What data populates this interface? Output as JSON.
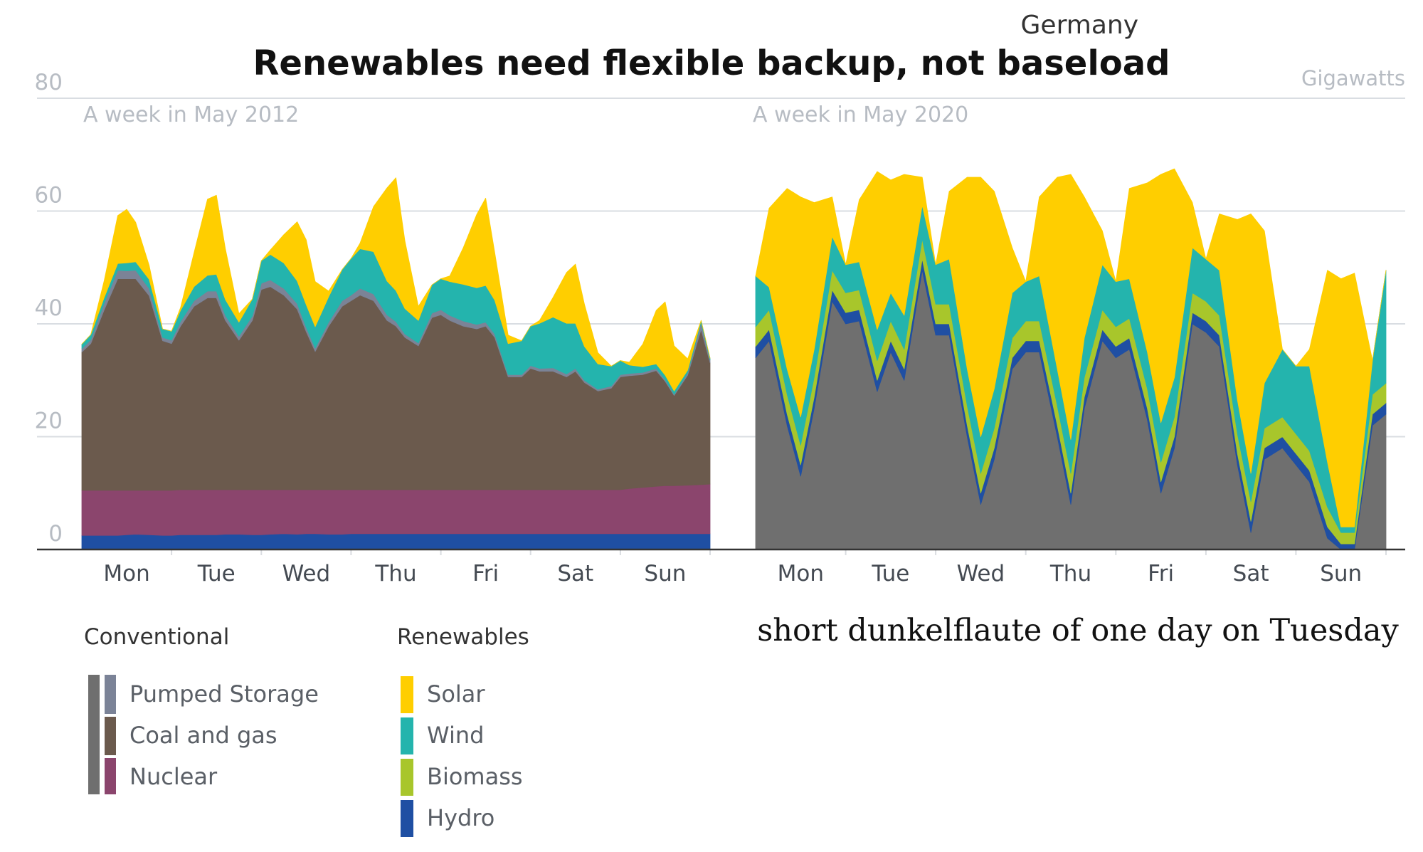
{
  "title": "Renewables need flexible backup, not baseload",
  "country": "Germany",
  "unit_label": "Gigawatts",
  "annotation": "short dunkelflaute of one day on Tuesday",
  "legend": {
    "conventional_title": "Conventional",
    "renewables_title": "Renewables",
    "conventional_items": [
      {
        "key": "pumped",
        "label": "Pumped Storage"
      },
      {
        "key": "coal",
        "label": "Coal and gas"
      },
      {
        "key": "nuclear",
        "label": "Nuclear"
      }
    ],
    "renewable_items": [
      {
        "key": "solar",
        "label": "Solar"
      },
      {
        "key": "wind",
        "label": "Wind"
      },
      {
        "key": "biomass",
        "label": "Biomass"
      },
      {
        "key": "hydro",
        "label": "Hydro"
      }
    ]
  },
  "colors": {
    "hydro": "#1f4fa3",
    "nuclear": "#8b456d",
    "coal": "#6b5a4d",
    "pumped": "#7b8397",
    "wind": "#24b4ad",
    "solar": "#ffce00",
    "biomass": "#a8c62b",
    "conventional": "#6f6f6f",
    "gridline": "#d9dde2",
    "axis": "#333333"
  },
  "chart_data": [
    {
      "type": "area",
      "title": "A week in May 2012",
      "ylabel": "Gigawatts",
      "ylim": [
        0,
        80
      ],
      "yticks": [
        0,
        20,
        40,
        60,
        80
      ],
      "categories": [
        "Mon",
        "Tue",
        "Wed",
        "Thu",
        "Fri",
        "Sat",
        "Sun"
      ],
      "x": [
        0,
        0.1,
        0.25,
        0.4,
        0.5,
        0.6,
        0.75,
        0.9,
        1.0,
        1.1,
        1.25,
        1.4,
        1.5,
        1.6,
        1.75,
        1.9,
        2.0,
        2.1,
        2.25,
        2.4,
        2.5,
        2.6,
        2.75,
        2.9,
        3.0,
        3.1,
        3.25,
        3.4,
        3.5,
        3.6,
        3.75,
        3.9,
        4.0,
        4.1,
        4.25,
        4.4,
        4.5,
        4.6,
        4.75,
        4.9,
        5.0,
        5.1,
        5.25,
        5.4,
        5.5,
        5.6,
        5.75,
        5.9,
        6.0,
        6.1,
        6.25,
        6.4,
        6.5,
        6.6,
        6.75,
        6.9,
        7.0
      ],
      "series": [
        {
          "name": "Hydro",
          "values": [
            2.5,
            2.5,
            2.5,
            2.5,
            2.6,
            2.7,
            2.6,
            2.5,
            2.5,
            2.6,
            2.6,
            2.6,
            2.6,
            2.7,
            2.7,
            2.6,
            2.6,
            2.7,
            2.8,
            2.7,
            2.8,
            2.8,
            2.7,
            2.7,
            2.8,
            2.8,
            2.8,
            2.8,
            2.8,
            2.8,
            2.8,
            2.8,
            2.8,
            2.8,
            2.8,
            2.8,
            2.8,
            2.8,
            2.8,
            2.8,
            2.8,
            2.8,
            2.8,
            2.8,
            2.8,
            2.8,
            2.8,
            2.8,
            2.8,
            2.8,
            2.8,
            2.8,
            2.8,
            2.8,
            2.8,
            2.8,
            2.8
          ]
        },
        {
          "name": "Nuclear",
          "values": [
            8.0,
            8.0,
            8.0,
            8.0,
            7.9,
            7.8,
            7.9,
            8.0,
            8.0,
            8.0,
            8.0,
            8.0,
            8.0,
            7.9,
            7.9,
            8.0,
            8.0,
            7.9,
            7.8,
            7.9,
            7.8,
            7.8,
            7.9,
            7.9,
            7.8,
            7.8,
            7.8,
            7.8,
            7.8,
            7.8,
            7.8,
            7.8,
            7.8,
            7.8,
            7.8,
            7.8,
            7.8,
            7.8,
            7.8,
            7.8,
            7.8,
            7.8,
            7.8,
            7.8,
            7.8,
            7.8,
            7.8,
            7.8,
            7.8,
            8.0,
            8.2,
            8.4,
            8.5,
            8.5,
            8.6,
            8.7,
            8.8
          ]
        },
        {
          "name": "Coal and gas",
          "values": [
            24.5,
            26.0,
            32.0,
            37.5,
            37.5,
            37.5,
            34.5,
            26.5,
            26.0,
            29.0,
            32.5,
            34.0,
            34.0,
            30.0,
            26.5,
            30.0,
            35.5,
            36.0,
            34.5,
            32.0,
            28.0,
            24.5,
            29.0,
            32.5,
            33.5,
            34.5,
            33.5,
            30.0,
            29.0,
            27.0,
            25.5,
            30.5,
            31.0,
            30.0,
            29.0,
            28.5,
            29.0,
            27.0,
            20.0,
            20.0,
            21.5,
            21.0,
            21.0,
            20.0,
            21.0,
            19.0,
            17.5,
            18.0,
            20.0,
            20.0,
            20.0,
            20.5,
            18.5,
            16.0,
            19.5,
            27.5,
            21.5
          ]
        },
        {
          "name": "Pumped Storage",
          "values": [
            0.6,
            0.7,
            1.2,
            1.5,
            1.4,
            1.5,
            1.3,
            0.6,
            0.6,
            0.8,
            1.0,
            1.2,
            1.2,
            0.9,
            0.7,
            0.8,
            1.1,
            1.2,
            1.2,
            1.0,
            0.8,
            0.6,
            0.7,
            1.0,
            1.0,
            1.2,
            1.2,
            1.0,
            0.8,
            0.6,
            0.5,
            0.8,
            0.9,
            0.9,
            0.9,
            0.8,
            0.7,
            0.6,
            0.4,
            0.4,
            0.5,
            0.5,
            0.6,
            0.5,
            0.5,
            0.4,
            0.3,
            0.4,
            0.4,
            0.4,
            0.4,
            0.4,
            0.3,
            0.2,
            0.4,
            1.2,
            0.5
          ]
        },
        {
          "name": "Wind",
          "values": [
            0.8,
            0.9,
            1.0,
            1.2,
            1.4,
            1.5,
            1.6,
            1.5,
            1.6,
            2.0,
            2.5,
            2.8,
            3.0,
            2.8,
            2.5,
            3.0,
            4.0,
            4.5,
            4.5,
            4.0,
            4.0,
            3.8,
            4.5,
            5.5,
            6.5,
            7.0,
            7.5,
            6.0,
            5.5,
            4.5,
            4.0,
            5.0,
            5.5,
            6.0,
            6.5,
            6.5,
            6.5,
            6.0,
            5.5,
            6.0,
            7.0,
            8.0,
            9.0,
            9.0,
            8.0,
            6.0,
            4.5,
            3.5,
            2.5,
            1.5,
            1.0,
            0.8,
            0.8,
            0.6,
            0.5,
            0.4,
            0.3
          ]
        },
        {
          "name": "Solar",
          "values": [
            0.0,
            0.0,
            3.0,
            8.5,
            9.5,
            7.0,
            2.5,
            0.0,
            0.0,
            0.5,
            6.0,
            13.5,
            14.0,
            9.0,
            1.5,
            0.0,
            0.0,
            0.8,
            5.0,
            10.5,
            11.5,
            8.0,
            1.0,
            0.0,
            0.0,
            1.0,
            8.0,
            16.5,
            20.0,
            12.0,
            2.5,
            0.0,
            0.0,
            1.0,
            6.5,
            13.0,
            15.5,
            8.5,
            1.5,
            0.0,
            0.0,
            0.5,
            3.5,
            9.0,
            10.5,
            7.5,
            2.0,
            0.0,
            0.0,
            0.5,
            4.0,
            9.5,
            13.0,
            8.0,
            2.0,
            0.0,
            0.0
          ]
        }
      ]
    },
    {
      "type": "area",
      "title": "A week in May 2020",
      "ylabel": "Gigawatts",
      "ylim": [
        0,
        80
      ],
      "yticks": [
        0,
        20,
        40,
        60,
        80
      ],
      "categories": [
        "Mon",
        "Tue",
        "Wed",
        "Thu",
        "Fri",
        "Sat",
        "Sun"
      ],
      "x": [
        0,
        0.15,
        0.35,
        0.5,
        0.65,
        0.85,
        1.0,
        1.15,
        1.35,
        1.5,
        1.65,
        1.85,
        2.0,
        2.15,
        2.35,
        2.5,
        2.65,
        2.85,
        3.0,
        3.15,
        3.35,
        3.5,
        3.65,
        3.85,
        4.0,
        4.15,
        4.35,
        4.5,
        4.65,
        4.85,
        5.0,
        5.15,
        5.35,
        5.5,
        5.65,
        5.85,
        6.0,
        6.15,
        6.35,
        6.5,
        6.65,
        6.85,
        7.0
      ],
      "series": [
        {
          "name": "Conventional",
          "values": [
            34.0,
            37.0,
            22.0,
            13.0,
            25.0,
            44.0,
            40.0,
            40.5,
            28.0,
            35.0,
            30.0,
            49.5,
            38.0,
            38.0,
            20.0,
            8.0,
            16.0,
            32.0,
            35.0,
            35.0,
            20.0,
            8.0,
            25.0,
            37.0,
            34.0,
            35.5,
            23.0,
            10.0,
            18.0,
            40.0,
            38.5,
            36.0,
            15.0,
            3.0,
            16.0,
            18.0,
            15.0,
            12.0,
            2.0,
            0.0,
            0.0,
            22.0,
            24.0
          ]
        },
        {
          "name": "Hydro",
          "values": [
            2.0,
            2.0,
            2.0,
            2.0,
            2.0,
            2.0,
            2.0,
            2.0,
            2.0,
            2.0,
            2.0,
            2.0,
            2.0,
            2.0,
            2.0,
            2.0,
            2.0,
            2.0,
            2.0,
            2.0,
            2.0,
            2.0,
            2.0,
            2.0,
            2.0,
            2.0,
            2.0,
            2.0,
            2.0,
            2.0,
            2.0,
            2.0,
            2.0,
            2.0,
            2.0,
            2.0,
            2.0,
            2.0,
            2.0,
            1.0,
            1.0,
            2.0,
            2.0
          ]
        },
        {
          "name": "Biomass",
          "values": [
            3.5,
            3.5,
            3.5,
            3.5,
            3.5,
            3.5,
            3.5,
            3.5,
            3.5,
            3.5,
            3.5,
            3.5,
            3.5,
            3.5,
            3.5,
            3.5,
            3.5,
            3.5,
            3.5,
            3.5,
            3.5,
            3.5,
            3.5,
            3.5,
            3.5,
            3.5,
            3.5,
            3.5,
            3.5,
            3.5,
            3.5,
            3.5,
            3.5,
            3.5,
            3.5,
            3.5,
            3.5,
            3.5,
            3.5,
            2.0,
            2.0,
            3.5,
            3.5
          ]
        },
        {
          "name": "Wind",
          "values": [
            9.0,
            4.0,
            4.5,
            5.0,
            5.0,
            6.0,
            5.0,
            5.0,
            5.5,
            5.0,
            6.0,
            6.0,
            7.0,
            8.0,
            6.5,
            6.5,
            7.0,
            8.0,
            7.0,
            8.0,
            6.5,
            6.0,
            7.0,
            8.0,
            8.0,
            7.0,
            6.5,
            7.0,
            7.0,
            8.0,
            7.5,
            8.0,
            6.0,
            5.0,
            8.0,
            12.0,
            12.0,
            15.0,
            8.0,
            1.0,
            1.0,
            6.0,
            20.0
          ]
        },
        {
          "name": "Solar",
          "values": [
            0.0,
            14.0,
            32.0,
            39.0,
            26.0,
            7.0,
            0.0,
            11.0,
            28.0,
            20.0,
            25.0,
            5.0,
            0.0,
            12.0,
            34.0,
            46.0,
            35.0,
            8.0,
            0.0,
            14.0,
            34.0,
            47.0,
            25.0,
            6.0,
            0.0,
            16.0,
            30.0,
            44.0,
            37.0,
            8.0,
            0.0,
            10.0,
            32.0,
            46.0,
            27.0,
            0.0,
            0.0,
            3.0,
            34.0,
            44.0,
            45.0,
            0.0,
            0.0
          ]
        }
      ]
    }
  ]
}
